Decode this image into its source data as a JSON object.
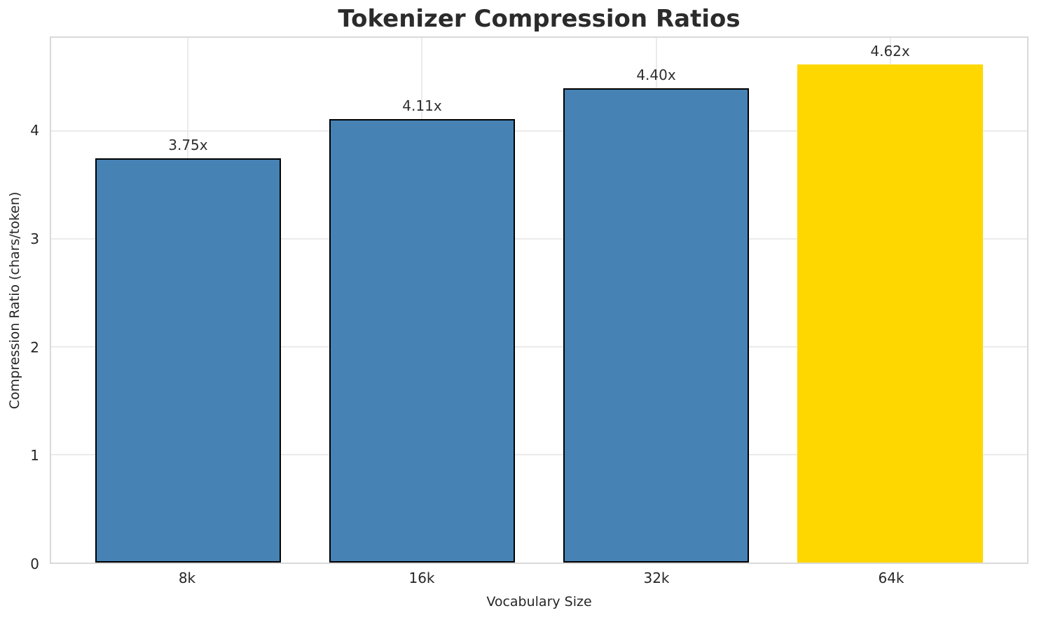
{
  "chart_data": {
    "type": "bar",
    "title": "Tokenizer Compression Ratios",
    "xlabel": "Vocabulary Size",
    "ylabel": "Compression Ratio (chars/token)",
    "categories": [
      "8k",
      "16k",
      "32k",
      "64k"
    ],
    "values": [
      3.75,
      4.11,
      4.4,
      4.62
    ],
    "bar_labels": [
      "3.75x",
      "4.11x",
      "4.40x",
      "4.62x"
    ],
    "yticks": [
      0,
      1,
      2,
      3,
      4
    ],
    "ylim": [
      0,
      4.866
    ],
    "grid": true,
    "legend": "none",
    "bar_colors": [
      "#4682B4",
      "#4682B4",
      "#4682B4",
      "#FFD700"
    ],
    "bar_edge_colors": [
      "#000000",
      "#000000",
      "#000000",
      "#FFD700"
    ],
    "highlighted_category": "64k",
    "colors": {
      "grid": "#ebebeb",
      "spine": "#d9d9d9",
      "text": "#262626",
      "title": "#2b2b2b"
    }
  }
}
